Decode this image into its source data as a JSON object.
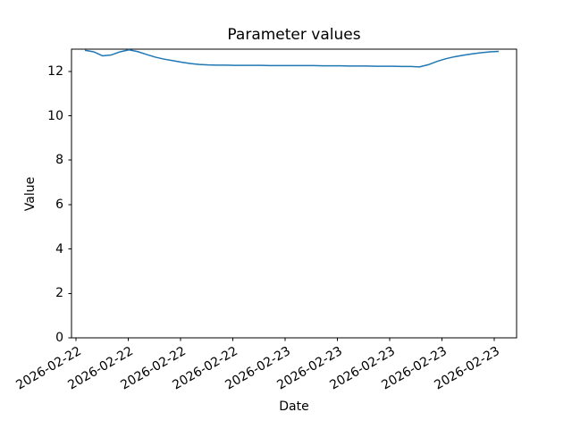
{
  "chart_data": {
    "type": "line",
    "title": "Parameter values",
    "xlabel": "Date",
    "ylabel": "Value",
    "ylim": [
      0,
      13
    ],
    "y_ticks": [
      0,
      2,
      4,
      6,
      8,
      10,
      12
    ],
    "x_tick_labels": [
      "2026-02-22",
      "2026-02-22",
      "2026-02-22",
      "2026-02-22",
      "2026-02-23",
      "2026-02-23",
      "2026-02-23",
      "2026-02-23",
      "2026-02-23"
    ],
    "grid": false,
    "legend": "none",
    "line_color": "#1f77b4",
    "axis_color": "#000000",
    "background_color": "#ffffff",
    "series": [
      {
        "name": "Parameter",
        "values": [
          12.95,
          12.88,
          12.7,
          12.74,
          12.88,
          12.97,
          12.89,
          12.76,
          12.64,
          12.55,
          12.48,
          12.41,
          12.35,
          12.31,
          12.29,
          12.28,
          12.28,
          12.27,
          12.27,
          12.27,
          12.27,
          12.26,
          12.26,
          12.26,
          12.26,
          12.26,
          12.26,
          12.25,
          12.25,
          12.25,
          12.24,
          12.24,
          12.24,
          12.23,
          12.23,
          12.23,
          12.22,
          12.22,
          12.2,
          12.3,
          12.45,
          12.57,
          12.66,
          12.73,
          12.79,
          12.84,
          12.88,
          12.9
        ]
      }
    ]
  }
}
